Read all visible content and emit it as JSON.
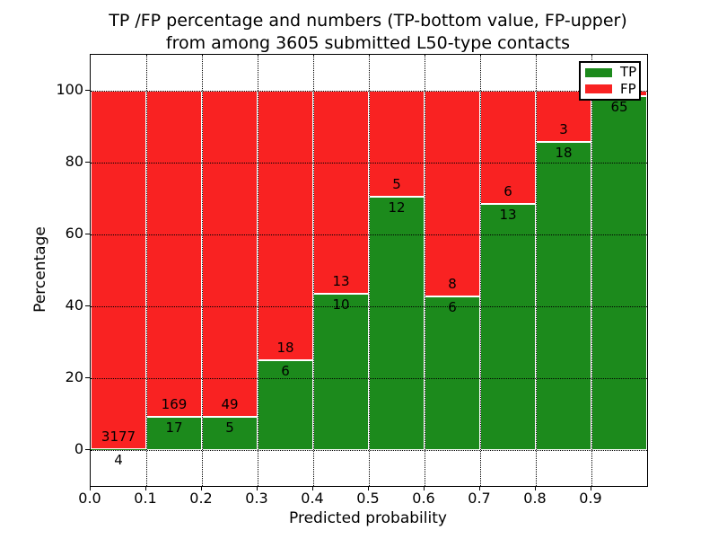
{
  "title": {
    "line1": "TP /FP percentage and numbers (TP-bottom value, FP-upper)",
    "line2": "from among 3605 submitted L50-type contacts"
  },
  "axes": {
    "ylabel": "Percentage",
    "xlabel": "Predicted probability",
    "yticks": [
      "100",
      "80",
      "60",
      "40",
      "20",
      "0"
    ],
    "xticks": [
      "0.0",
      "0.1",
      "0.2",
      "0.3",
      "0.4",
      "0.5",
      "0.6",
      "0.7",
      "0.8",
      "0.9"
    ]
  },
  "legend": {
    "items": [
      {
        "label": "TP",
        "color": "#1c8a1c"
      },
      {
        "label": "FP",
        "color": "#f92222"
      }
    ]
  },
  "chart_data": {
    "type": "bar",
    "variant": "stacked-percentage",
    "title": "TP /FP percentage and numbers (TP-bottom value, FP-upper) from among 3605 submitted L50-type contacts",
    "xlabel": "Predicted probability",
    "ylabel": "Percentage",
    "xlim": [
      0.0,
      1.0
    ],
    "ylim": [
      -10,
      110
    ],
    "grid": "dotted-black-on-top",
    "legend_position": "upper right",
    "total_contacts": 3605,
    "colors": {
      "tp": "#1c8a1c",
      "fp": "#f92222",
      "bar_edge": "#ffffff"
    },
    "categories": [
      "0.0-0.1",
      "0.1-0.2",
      "0.2-0.3",
      "0.3-0.4",
      "0.4-0.5",
      "0.5-0.6",
      "0.6-0.7",
      "0.7-0.8",
      "0.8-0.9",
      "0.9-1.0"
    ],
    "series": [
      {
        "name": "TP",
        "values": [
          4,
          17,
          5,
          6,
          10,
          12,
          6,
          13,
          18,
          65
        ]
      },
      {
        "name": "FP",
        "values": [
          3177,
          169,
          49,
          18,
          13,
          5,
          8,
          6,
          3,
          1
        ]
      }
    ],
    "tp_pct": [
      0.13,
      9.14,
      9.26,
      25.0,
      43.48,
      70.59,
      42.86,
      68.42,
      85.71,
      98.48
    ],
    "fp_label_hidden_by_legend_index": 9
  }
}
